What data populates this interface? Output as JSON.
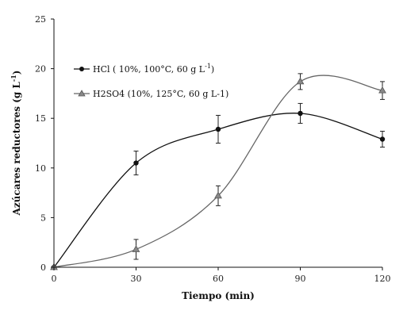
{
  "chart_data": {
    "type": "line",
    "title": "",
    "xlabel": "Tiempo (min)",
    "ylabel_text": "Azúcares reductores (g L",
    "ylabel_sup": "-1",
    "ylabel_close": ")",
    "x": [
      0,
      30,
      60,
      90,
      120
    ],
    "x_ticks": [
      "0",
      "30",
      "60",
      "90",
      "120"
    ],
    "y_ticks": [
      "0",
      "5",
      "10",
      "15",
      "20",
      "25"
    ],
    "xlim": [
      0,
      120
    ],
    "ylim": [
      0,
      25
    ],
    "grid": false,
    "legend_position": "top-left",
    "series": [
      {
        "name_main": "HCl  ( 10%,  100°C, 60 g L",
        "name_sup": "-1",
        "name_close": ")",
        "marker": "circle",
        "color": "#111111",
        "values": [
          0,
          10.5,
          13.9,
          15.5,
          12.9
        ],
        "errors": [
          0,
          1.2,
          1.4,
          1.0,
          0.8
        ]
      },
      {
        "name_main": "H2SO4 (10%,  125°C,  60 g L-1)",
        "marker": "triangle",
        "color": "#666666",
        "values": [
          0,
          1.8,
          7.2,
          18.7,
          17.8
        ],
        "errors": [
          0,
          1.0,
          1.0,
          0.8,
          0.9
        ]
      }
    ]
  }
}
